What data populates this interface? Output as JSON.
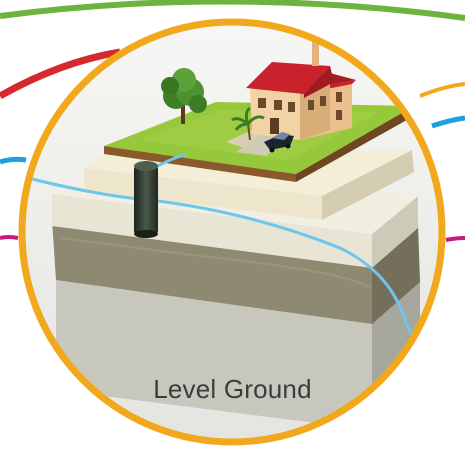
{
  "caption": "Level Ground",
  "colors": {
    "ring": "#F2A81D",
    "swoosh_green": "#6DB33F",
    "swoosh_red": "#D7282F",
    "swoosh_blue": "#1BA1DC",
    "swoosh_magenta": "#C8197E",
    "grass": "#96C83C",
    "soil": "#8A5A2A",
    "pipe": "#6FC5EA",
    "tank": "#2E3A2E",
    "roof": "#C8232C",
    "house_wall": "#E9C08E"
  },
  "icons": {
    "tree": "tree-icon",
    "house": "house-icon",
    "car": "car-icon",
    "tank": "septic-tank-icon"
  }
}
